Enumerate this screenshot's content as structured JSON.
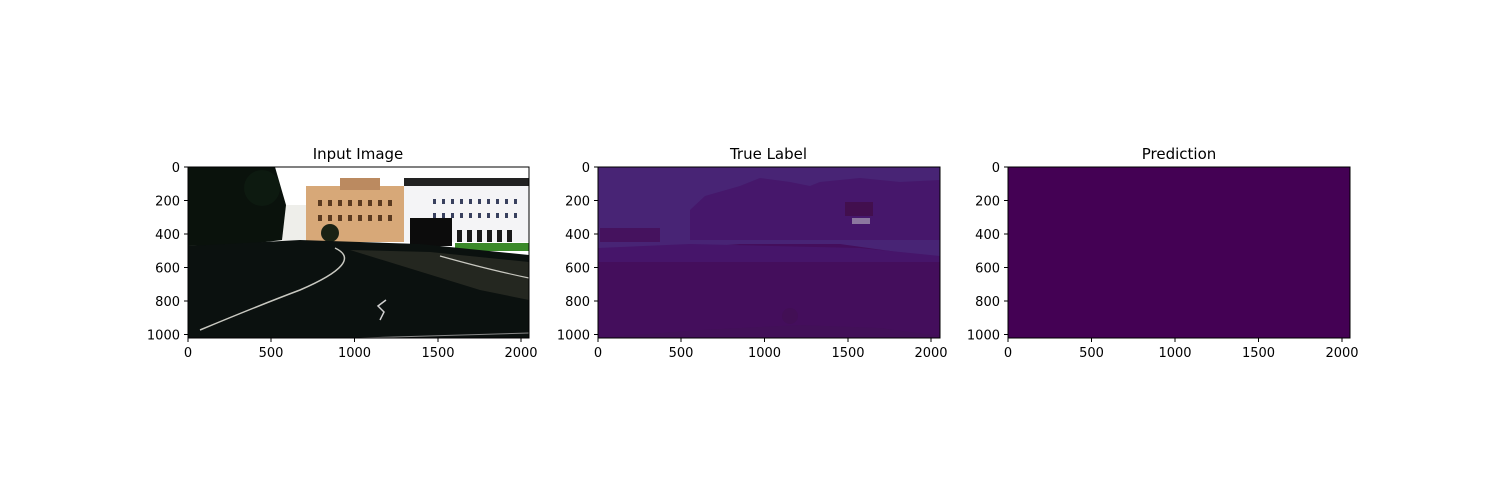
{
  "figure": {
    "panels": [
      {
        "title": "Input Image",
        "kind": "photo",
        "x_ticks": [
          "0",
          "500",
          "1000",
          "1500",
          "2000"
        ],
        "y_ticks": [
          "0",
          "200",
          "400",
          "600",
          "800",
          "1000"
        ]
      },
      {
        "title": "True Label",
        "kind": "label-map",
        "x_ticks": [
          "0",
          "500",
          "1000",
          "1500",
          "2000"
        ],
        "y_ticks": [
          "0",
          "200",
          "400",
          "600",
          "800",
          "1000"
        ]
      },
      {
        "title": "Prediction",
        "kind": "uniform-map",
        "x_ticks": [
          "0",
          "500",
          "1000",
          "1500",
          "2000"
        ],
        "y_ticks": [
          "0",
          "200",
          "400",
          "600",
          "800",
          "1000"
        ]
      }
    ],
    "colors": {
      "viridis_dark": "#440154",
      "label_purple": "#46176b",
      "label_purple_alt": "#482475",
      "label_mid": "#4a1c6e",
      "road_dark": "#0b110f"
    }
  }
}
